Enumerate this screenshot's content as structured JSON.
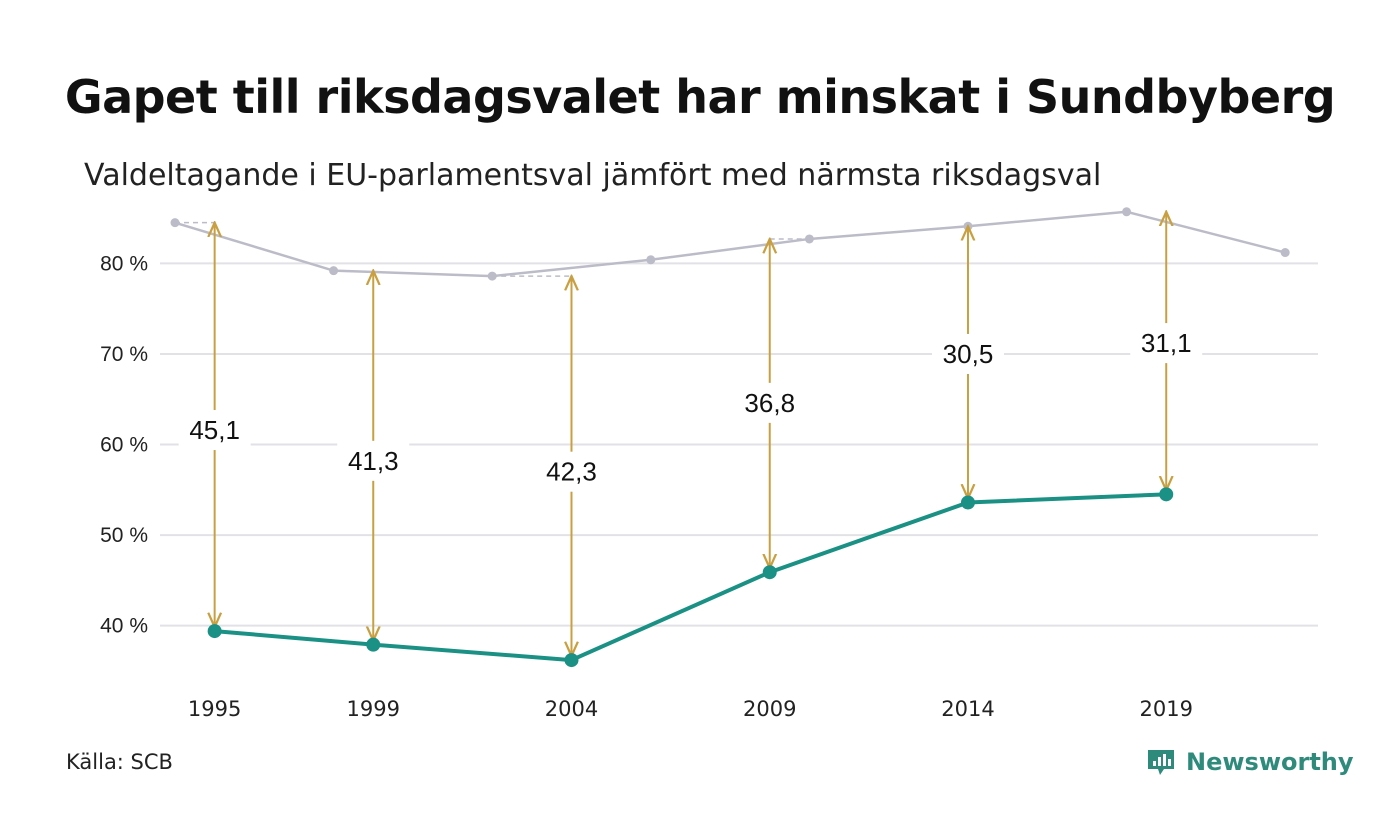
{
  "title": "Gapet till riksdagsvalet har minskat i Sundbyberg",
  "subtitle": "Valdeltagande i EU-parlamentsval jämfört med närmsta riksdagsval",
  "source": "Källa: SCB",
  "brand": {
    "name": "Newsworthy",
    "icon": "newsworthy-logo-icon"
  },
  "colors": {
    "eu": "#1a9184",
    "riksdag": "#bcbcc8",
    "gap": "#c9a041",
    "grid": "#e2e2e6"
  },
  "chart_data": {
    "type": "line",
    "y_unit": "%",
    "ylim": [
      34,
      87
    ],
    "yticks": [
      40,
      50,
      60,
      70,
      80
    ],
    "ytick_labels": [
      "40 %",
      "50 %",
      "60 %",
      "70 %",
      "80 %"
    ],
    "xlim": [
      1994,
      2022.5
    ],
    "xticks": [
      1995,
      1999,
      2004,
      2009,
      2014,
      2019
    ],
    "xtick_labels": [
      "1995",
      "1999",
      "2004",
      "2009",
      "2014",
      "2019"
    ],
    "grid": true,
    "series": [
      {
        "key": "riksdag",
        "x": [
          1994,
          1998,
          2002,
          2006,
          2010,
          2014,
          2018,
          2022
        ],
        "values": [
          84.5,
          79.2,
          78.6,
          80.4,
          82.7,
          84.1,
          85.7,
          81.2
        ]
      },
      {
        "key": "eu",
        "x": [
          1995,
          1999,
          2004,
          2009,
          2014,
          2019
        ],
        "values": [
          39.4,
          37.9,
          36.2,
          45.9,
          53.6,
          54.5
        ]
      }
    ],
    "gaps": [
      {
        "x": 1995,
        "from": 39.4,
        "to": 84.5,
        "label": "45,1",
        "label_y": 61.6
      },
      {
        "x": 1999,
        "from": 37.9,
        "to": 79.2,
        "label": "41,3",
        "label_y": 58.2
      },
      {
        "x": 2004,
        "from": 36.2,
        "to": 78.6,
        "label": "42,3",
        "label_y": 57.0
      },
      {
        "x": 2009,
        "from": 45.9,
        "to": 82.7,
        "label": "36,8",
        "label_y": 64.6
      },
      {
        "x": 2014,
        "from": 53.6,
        "to": 84.1,
        "label": "30,5",
        "label_y": 70.0
      },
      {
        "x": 2019,
        "from": 54.5,
        "to": 85.7,
        "label": "31,1",
        "label_y": 71.2
      }
    ],
    "ref_dashes": [
      {
        "x0": 1994,
        "x1": 1995,
        "y": 84.5
      },
      {
        "x0": 2002,
        "x1": 2004,
        "y": 78.6
      },
      {
        "x0": 2009,
        "x1": 2010,
        "y": 82.7
      }
    ]
  }
}
